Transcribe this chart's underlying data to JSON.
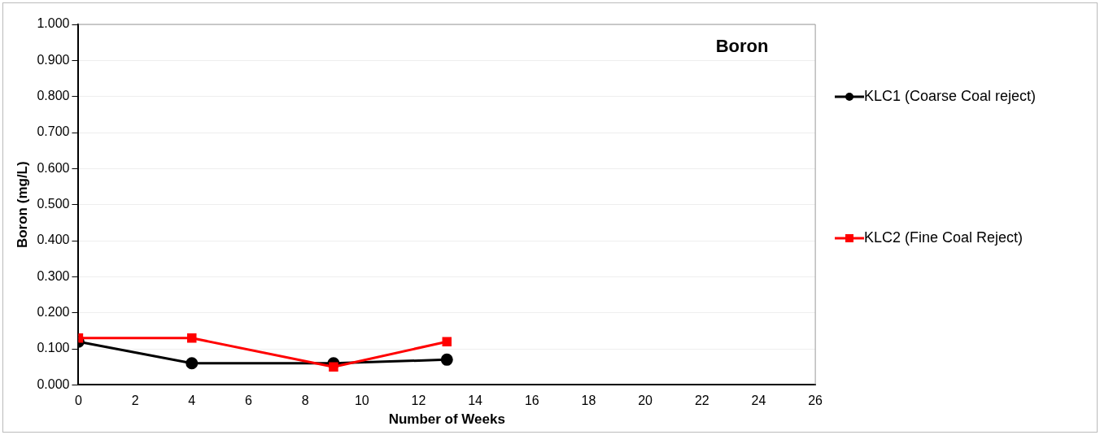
{
  "chart_data": {
    "type": "line",
    "title": "Boron",
    "xlabel": "Number of Weeks",
    "ylabel": "Boron (mg/L)",
    "series": [
      {
        "name": "KLC1 (Coarse Coal reject)",
        "color": "#000000",
        "marker": "circle",
        "x": [
          0,
          4,
          9,
          13
        ],
        "values": [
          0.12,
          0.06,
          0.06,
          0.07
        ]
      },
      {
        "name": "KLC2 (Fine Coal Reject)",
        "color": "#ff0000",
        "marker": "square",
        "x": [
          0,
          4,
          9,
          13
        ],
        "values": [
          0.13,
          0.13,
          0.05,
          0.12
        ]
      }
    ],
    "xlim": [
      0,
      26
    ],
    "xticks": [
      0,
      2,
      4,
      6,
      8,
      10,
      12,
      14,
      16,
      18,
      20,
      22,
      24,
      26
    ],
    "ylim": [
      0,
      1
    ],
    "yticks": [
      {
        "value": 0,
        "label": "0.000"
      },
      {
        "value": 0.1,
        "label": "0.100"
      },
      {
        "value": 0.2,
        "label": "0.200"
      },
      {
        "value": 0.3,
        "label": "0.300"
      },
      {
        "value": 0.4,
        "label": "0.400"
      },
      {
        "value": 0.5,
        "label": "0.500"
      },
      {
        "value": 0.6,
        "label": "0.600"
      },
      {
        "value": 0.7,
        "label": "0.700"
      },
      {
        "value": 0.8,
        "label": "0.800"
      },
      {
        "value": 0.9,
        "label": "0.900"
      },
      {
        "value": 1,
        "label": "1.000"
      }
    ],
    "grid": "y",
    "legend": "right",
    "line_style": "solid"
  }
}
